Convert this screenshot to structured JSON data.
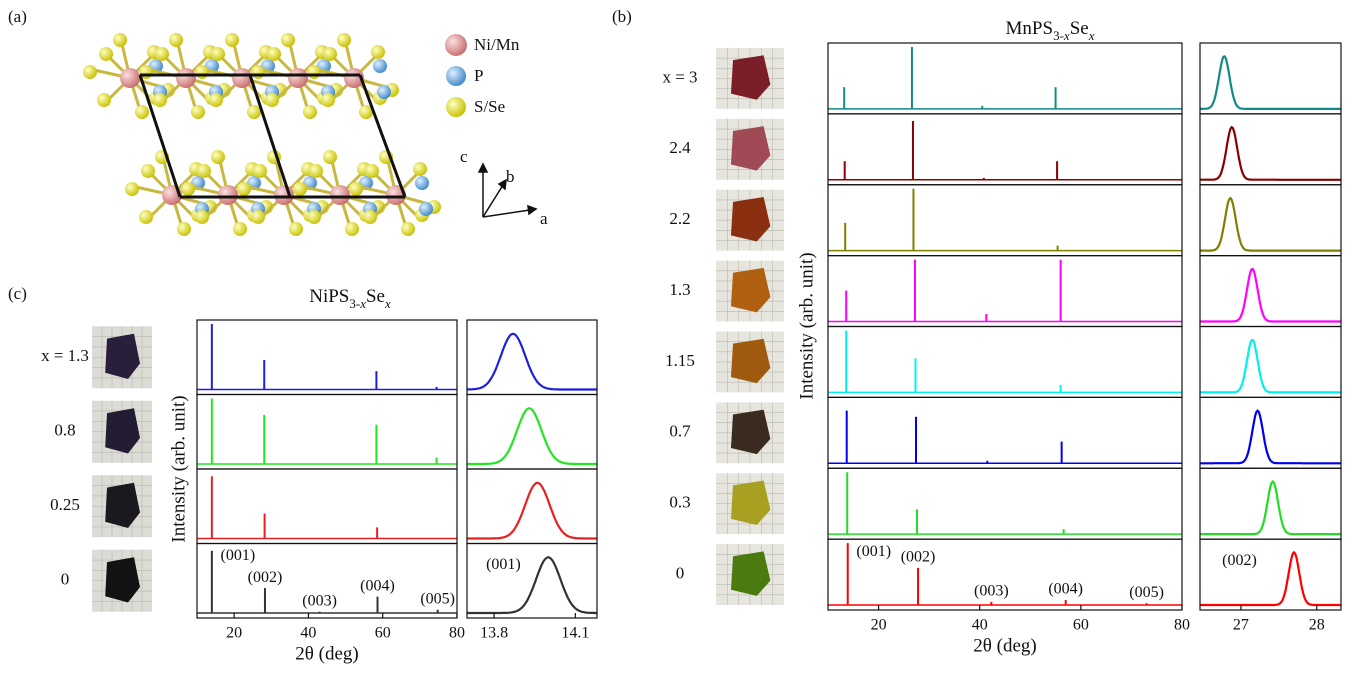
{
  "panels": {
    "a": {
      "label": "(a)",
      "legend": [
        "Ni/Mn",
        "P",
        "S/Se"
      ],
      "axes": [
        "c",
        "b",
        "a"
      ]
    },
    "b": {
      "label": "(b)"
    },
    "c": {
      "label": "(c)"
    }
  },
  "chart_data": [
    {
      "type": "stick",
      "title_parts": [
        "NiPS",
        "3-",
        "x",
        "Se",
        "x"
      ],
      "ylabel": "Intensity (arb. unit)",
      "xlabel": "2θ (deg)",
      "xlim": [
        10,
        80
      ],
      "xticks": [
        20,
        40,
        60,
        80
      ],
      "ylim": [
        0,
        1
      ],
      "series": [
        {
          "name": "x = 1.3",
          "color": "#1f1fe0",
          "x": [
            14.0,
            28.1,
            58.3,
            74.5
          ],
          "values": [
            1.0,
            0.45,
            0.28,
            0.04
          ]
        },
        {
          "name": "0.8",
          "color": "#22e622",
          "x": [
            14.0,
            28.1,
            58.3,
            74.5
          ],
          "values": [
            1.0,
            0.75,
            0.6,
            0.1
          ]
        },
        {
          "name": "0.25",
          "color": "#e82020",
          "x": [
            14.0,
            28.2,
            58.5
          ],
          "values": [
            0.95,
            0.38,
            0.17
          ]
        },
        {
          "name": "0",
          "color": "#333333",
          "x": [
            14.0,
            28.3,
            43.0,
            58.6,
            74.8
          ],
          "values": [
            0.95,
            0.38,
            0.02,
            0.25,
            0.05
          ],
          "peak_labels": [
            "(001)",
            "(002)",
            "(003)",
            "(004)",
            "(005)"
          ]
        }
      ]
    },
    {
      "type": "peak",
      "xlabel_of": 0,
      "xlim": [
        13.7,
        14.18
      ],
      "xticks": [
        13.8,
        14.1
      ],
      "ylim": [
        0,
        1
      ],
      "width": 0.045,
      "annotation": "(001)",
      "series": [
        {
          "color": "#1f1fe0",
          "x": [
            13.87
          ],
          "values": [
            0.85
          ]
        },
        {
          "color": "#22e622",
          "x": [
            13.93
          ],
          "values": [
            0.85
          ]
        },
        {
          "color": "#e82020",
          "x": [
            13.96
          ],
          "values": [
            0.85
          ]
        },
        {
          "color": "#333333",
          "x": [
            14.0
          ],
          "values": [
            0.85
          ]
        }
      ]
    },
    {
      "type": "stick",
      "title_parts": [
        "MnPS",
        "3-",
        "x",
        "Se",
        "x"
      ],
      "ylabel": "Intensity (arb. unit)",
      "xlabel": "2θ (deg)",
      "xlim": [
        10,
        80
      ],
      "xticks": [
        20,
        40,
        60,
        80
      ],
      "ylim": [
        0,
        1
      ],
      "series": [
        {
          "name": "x = 3",
          "color": "#138a8a",
          "x": [
            13.2,
            26.6,
            40.5,
            55.0
          ],
          "values": [
            0.35,
            1.0,
            0.05,
            0.35
          ]
        },
        {
          "name": "2.4",
          "color": "#8b0000",
          "x": [
            13.3,
            26.8,
            40.8,
            55.3
          ],
          "values": [
            0.3,
            0.95,
            0.03,
            0.3
          ]
        },
        {
          "name": "2.2",
          "color": "#7f7f00",
          "x": [
            13.4,
            26.9,
            55.4
          ],
          "values": [
            0.45,
            1.0,
            0.08
          ]
        },
        {
          "name": "1.3",
          "color": "#ff00ff",
          "x": [
            13.6,
            27.2,
            41.3,
            56.0
          ],
          "values": [
            0.5,
            1.0,
            0.12,
            1.0
          ]
        },
        {
          "name": "1.15",
          "color": "#00f0f0",
          "x": [
            13.6,
            27.3,
            56.0
          ],
          "values": [
            1.0,
            0.55,
            0.12
          ]
        },
        {
          "name": "0.7",
          "color": "#0000ee",
          "x": [
            13.7,
            27.4,
            41.5,
            56.2
          ],
          "values": [
            0.85,
            0.75,
            0.04,
            0.35
          ]
        },
        {
          "name": "0.3",
          "color": "#22dd22",
          "x": [
            13.8,
            27.6,
            56.6
          ],
          "values": [
            1.0,
            0.4,
            0.08
          ]
        },
        {
          "name": "0",
          "color": "#ff0000",
          "x": [
            13.9,
            27.8,
            42.3,
            57.0,
            73.0
          ],
          "values": [
            1.0,
            0.6,
            0.05,
            0.08,
            0.03
          ],
          "peak_labels": [
            "(001)",
            "(002)",
            "(003)",
            "(004)",
            "(005)"
          ]
        }
      ]
    },
    {
      "type": "peak",
      "xlim": [
        26.46,
        28.32
      ],
      "xticks": [
        27,
        28
      ],
      "ylim": [
        0,
        1
      ],
      "width": 0.07,
      "annotation": "(002)",
      "series": [
        {
          "color": "#138a8a",
          "x": [
            26.78
          ],
          "values": [
            0.85
          ]
        },
        {
          "color": "#8b0000",
          "x": [
            26.88
          ],
          "values": [
            0.85
          ]
        },
        {
          "color": "#7f7f00",
          "x": [
            26.86
          ],
          "values": [
            0.85
          ]
        },
        {
          "color": "#ff00ff",
          "x": [
            27.15
          ],
          "values": [
            0.85
          ]
        },
        {
          "color": "#00f0f0",
          "x": [
            27.15
          ],
          "values": [
            0.85
          ]
        },
        {
          "color": "#0000ee",
          "x": [
            27.22
          ],
          "values": [
            0.85
          ]
        },
        {
          "color": "#22dd22",
          "x": [
            27.42
          ],
          "values": [
            0.85
          ]
        },
        {
          "color": "#ff0000",
          "x": [
            27.7
          ],
          "values": [
            0.85
          ]
        }
      ]
    }
  ]
}
